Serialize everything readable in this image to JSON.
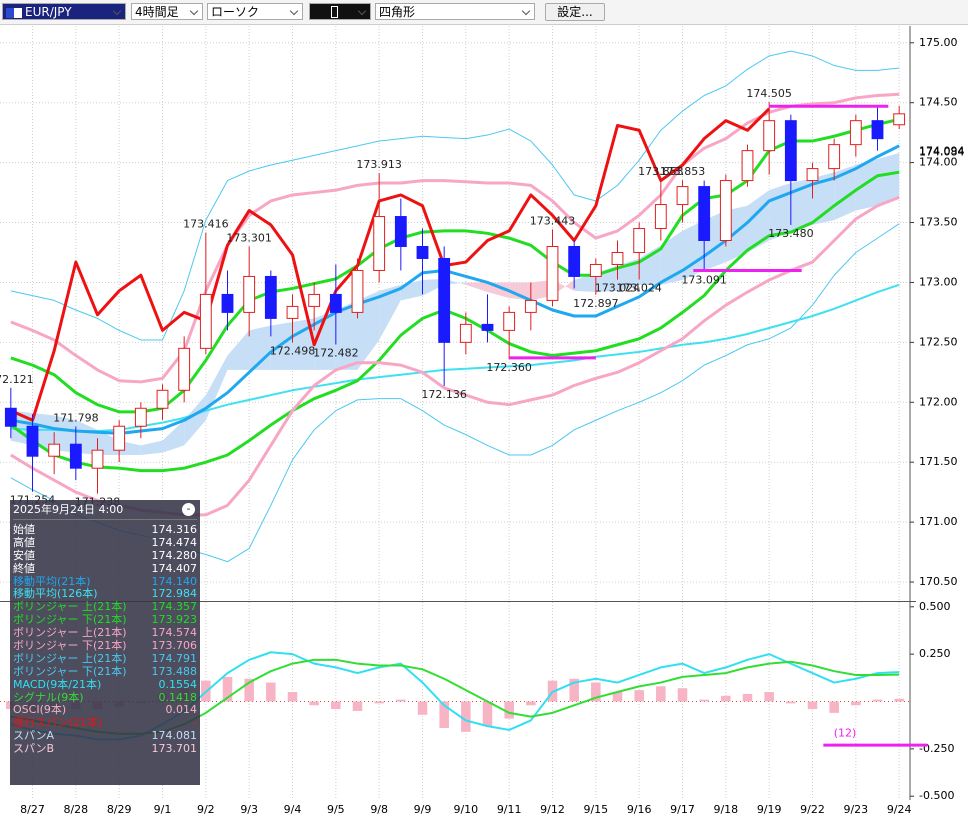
{
  "toolbar": {
    "symbol": "EUR/JPY",
    "timeframe": "4時間足",
    "chart_type": "ローソク",
    "drawing_tool": "四角形",
    "settings_button": "設定..."
  },
  "info_panel": {
    "title": "2025年9月24日 4:00",
    "ohlc": [
      {
        "label": "始値",
        "value": "174.316"
      },
      {
        "label": "高値",
        "value": "174.474"
      },
      {
        "label": "安値",
        "value": "174.280"
      },
      {
        "label": "終値",
        "value": "174.407"
      }
    ],
    "series_values": [
      "174.140",
      "172.984",
      "174.357",
      "173.923",
      "174.574",
      "173.706",
      "174.791",
      "173.488",
      "0.1554",
      "0.1418",
      "0.014",
      "-",
      "174.081",
      "173.701"
    ]
  },
  "chart_data": {
    "type": "candlestick",
    "categories": [
      null,
      "8/27",
      null,
      "8/28",
      null,
      "8/29",
      null,
      "9/1",
      null,
      "9/2",
      null,
      "9/3",
      null,
      "9/4",
      null,
      "9/5",
      null,
      "9/8",
      null,
      "9/9",
      null,
      "9/10",
      null,
      "9/11",
      null,
      "9/12",
      null,
      "9/15",
      null,
      "9/16",
      null,
      "9/17",
      null,
      "9/18",
      null,
      "9/19",
      null,
      "9/22",
      null,
      "9/23",
      null,
      "9/24"
    ],
    "open": [
      171.95,
      171.8,
      171.55,
      171.65,
      171.45,
      171.6,
      171.8,
      171.95,
      172.1,
      172.45,
      172.9,
      172.75,
      173.05,
      172.7,
      172.8,
      172.9,
      172.75,
      173.1,
      173.55,
      173.3,
      173.2,
      172.5,
      172.65,
      172.6,
      172.75,
      172.85,
      173.3,
      173.05,
      173.15,
      173.25,
      173.45,
      173.65,
      173.8,
      173.35,
      173.85,
      174.1,
      174.35,
      173.85,
      173.95,
      174.15,
      174.35,
      174.316
    ],
    "high": [
      172.121,
      171.9,
      171.75,
      171.798,
      171.7,
      171.85,
      172.0,
      172.15,
      172.55,
      173.416,
      173.1,
      173.301,
      173.1,
      172.9,
      173.0,
      173.15,
      173.2,
      173.913,
      173.7,
      173.45,
      173.3,
      172.75,
      172.9,
      172.8,
      173.0,
      173.443,
      173.35,
      173.2,
      173.35,
      173.5,
      173.853,
      173.853,
      173.85,
      173.9,
      174.15,
      174.505,
      174.4,
      174.0,
      174.2,
      174.4,
      174.47,
      174.474
    ],
    "low": [
      171.7,
      171.254,
      171.4,
      171.35,
      171.238,
      171.5,
      171.7,
      171.85,
      172.0,
      172.4,
      172.6,
      172.55,
      172.55,
      172.498,
      172.6,
      172.482,
      172.7,
      173.0,
      173.1,
      172.9,
      172.136,
      172.4,
      172.5,
      172.36,
      172.6,
      172.8,
      172.95,
      172.897,
      173.024,
      173.024,
      173.35,
      173.5,
      173.091,
      173.3,
      173.8,
      173.9,
      173.48,
      173.7,
      173.85,
      174.05,
      174.1,
      174.28
    ],
    "close": [
      171.8,
      171.55,
      171.65,
      171.45,
      171.6,
      171.8,
      171.95,
      172.1,
      172.45,
      172.9,
      172.75,
      173.05,
      172.7,
      172.8,
      172.9,
      172.75,
      173.1,
      173.55,
      173.3,
      173.2,
      172.5,
      172.65,
      172.6,
      172.75,
      172.85,
      173.3,
      173.05,
      173.15,
      173.25,
      173.45,
      173.65,
      173.8,
      173.35,
      173.85,
      174.1,
      174.35,
      173.85,
      173.95,
      174.15,
      174.35,
      174.2,
      174.407
    ],
    "up_color": "#e02020",
    "down_color": "#1a1aff",
    "series": [
      {
        "name": "移動平均(21本)",
        "color": "#1fa8f0",
        "mark": "line",
        "line_width": 3,
        "values": [
          171.85,
          171.82,
          171.78,
          171.76,
          171.75,
          171.74,
          171.76,
          171.78,
          171.85,
          171.95,
          172.08,
          172.25,
          172.42,
          172.55,
          172.65,
          172.75,
          172.82,
          172.88,
          172.95,
          173.08,
          173.1,
          173.05,
          173.0,
          172.93,
          172.85,
          172.77,
          172.72,
          172.72,
          172.8,
          172.88,
          173.0,
          173.1,
          173.22,
          173.35,
          173.5,
          173.68,
          173.75,
          173.82,
          173.87,
          173.95,
          174.05,
          174.14
        ]
      },
      {
        "name": "移動平均(126本)",
        "color": "#3fe0f0",
        "mark": "line",
        "line_width": 2,
        "values": [
          171.78,
          171.77,
          171.77,
          171.76,
          171.76,
          171.77,
          171.8,
          171.83,
          171.87,
          171.93,
          171.98,
          172.02,
          172.06,
          172.1,
          172.13,
          172.16,
          172.19,
          172.21,
          172.23,
          172.25,
          172.27,
          172.28,
          172.29,
          172.3,
          172.31,
          172.33,
          172.35,
          172.38,
          172.4,
          172.42,
          172.45,
          172.48,
          172.5,
          172.53,
          172.57,
          172.62,
          172.67,
          172.72,
          172.78,
          172.85,
          172.92,
          172.98
        ]
      },
      {
        "name": "ボリンジャー 上(21本)",
        "color": "#22dd22",
        "mark": "line",
        "line_width": 3,
        "values": [
          172.37,
          172.31,
          172.23,
          172.08,
          171.98,
          171.92,
          171.92,
          171.95,
          172.1,
          172.35,
          172.64,
          172.85,
          172.92,
          172.95,
          172.99,
          173.03,
          173.14,
          173.28,
          173.37,
          173.42,
          173.43,
          173.43,
          173.41,
          173.37,
          173.31,
          173.17,
          173.06,
          173.06,
          173.12,
          173.17,
          173.28,
          173.56,
          173.7,
          173.73,
          173.85,
          174.1,
          174.18,
          174.18,
          174.22,
          174.27,
          174.32,
          174.36
        ]
      },
      {
        "name": "ボリンジャー 下(21本)",
        "color": "#22dd22",
        "mark": "line",
        "line_width": 3,
        "values": [
          171.81,
          171.68,
          171.56,
          171.5,
          171.46,
          171.45,
          171.43,
          171.43,
          171.45,
          171.5,
          171.56,
          171.68,
          171.81,
          171.93,
          172.03,
          172.1,
          172.18,
          172.35,
          172.56,
          172.7,
          172.77,
          172.7,
          172.6,
          172.49,
          172.42,
          172.39,
          172.41,
          172.43,
          172.48,
          172.53,
          172.62,
          172.75,
          172.89,
          173.1,
          173.27,
          173.39,
          173.42,
          173.5,
          173.64,
          173.77,
          173.89,
          173.92
        ]
      },
      {
        "name": "ボリンジャー 上(21本)",
        "color": "#f7a6c6",
        "mark": "line",
        "line_width": 3,
        "values": [
          172.67,
          172.6,
          172.52,
          172.39,
          172.27,
          172.18,
          172.17,
          172.2,
          172.43,
          172.93,
          173.31,
          173.56,
          173.68,
          173.73,
          173.75,
          173.77,
          173.81,
          173.83,
          173.83,
          173.85,
          173.85,
          173.84,
          173.83,
          173.83,
          173.81,
          173.68,
          173.5,
          173.37,
          173.43,
          173.56,
          173.73,
          173.98,
          174.12,
          174.2,
          174.33,
          174.42,
          174.47,
          174.49,
          174.5,
          174.54,
          174.56,
          174.57
        ]
      },
      {
        "name": "ボリンジャー 下(21本)",
        "color": "#f7a6c6",
        "mark": "line",
        "line_width": 3,
        "values": [
          171.56,
          171.45,
          171.35,
          171.25,
          171.18,
          171.14,
          171.1,
          171.08,
          171.06,
          171.06,
          171.14,
          171.35,
          171.64,
          171.93,
          172.14,
          172.27,
          172.33,
          172.33,
          172.31,
          172.25,
          172.12,
          172.06,
          172.0,
          171.98,
          172.02,
          172.06,
          172.14,
          172.2,
          172.25,
          172.33,
          172.43,
          172.53,
          172.68,
          172.81,
          172.92,
          173.02,
          173.1,
          173.17,
          173.35,
          173.53,
          173.64,
          173.71
        ]
      },
      {
        "name": "ボリンジャー 上(21本)",
        "color": "#4cc8f0",
        "mark": "line",
        "line_width": 1,
        "values": [
          172.93,
          172.89,
          172.85,
          172.77,
          172.7,
          172.6,
          172.52,
          172.52,
          172.93,
          173.52,
          173.85,
          173.93,
          173.98,
          174.02,
          174.06,
          174.1,
          174.14,
          174.18,
          174.2,
          174.22,
          174.21,
          174.2,
          174.23,
          174.28,
          174.18,
          173.98,
          173.73,
          173.68,
          173.81,
          174.02,
          174.27,
          174.43,
          174.56,
          174.64,
          174.78,
          174.89,
          174.93,
          174.89,
          174.81,
          174.77,
          174.77,
          174.79
        ]
      },
      {
        "name": "ボリンジャー 下(21本)",
        "color": "#4cc8f0",
        "mark": "line",
        "line_width": 1,
        "values": [
          171.37,
          171.27,
          171.18,
          171.06,
          171.0,
          170.93,
          170.89,
          170.85,
          170.78,
          170.73,
          170.67,
          170.78,
          171.14,
          171.52,
          171.77,
          171.93,
          172.02,
          172.03,
          172.03,
          171.93,
          171.81,
          171.73,
          171.64,
          171.56,
          171.56,
          171.64,
          171.77,
          171.85,
          171.93,
          172.0,
          172.08,
          172.18,
          172.31,
          172.39,
          172.48,
          172.53,
          172.62,
          172.81,
          173.06,
          173.25,
          173.37,
          173.49
        ]
      },
      {
        "name": "MACD(9本/21本)",
        "color": "#30e0f0",
        "mark": "line",
        "line_width": 2,
        "axis": "y2",
        "values": [
          -0.12,
          -0.15,
          -0.17,
          -0.18,
          -0.2,
          -0.2,
          -0.18,
          -0.12,
          -0.05,
          0.05,
          0.15,
          0.22,
          0.26,
          0.25,
          0.2,
          0.18,
          0.15,
          0.18,
          0.2,
          0.1,
          -0.02,
          -0.1,
          -0.13,
          -0.15,
          -0.1,
          0.05,
          0.1,
          0.12,
          0.1,
          0.14,
          0.18,
          0.2,
          0.15,
          0.18,
          0.22,
          0.25,
          0.2,
          0.15,
          0.1,
          0.12,
          0.15,
          0.1554
        ]
      },
      {
        "name": "シグナル(9本)",
        "color": "#33dd33",
        "mark": "line",
        "line_width": 2,
        "axis": "y2",
        "values": [
          -0.08,
          -0.1,
          -0.12,
          -0.14,
          -0.16,
          -0.17,
          -0.17,
          -0.16,
          -0.12,
          -0.06,
          0.02,
          0.1,
          0.16,
          0.2,
          0.22,
          0.22,
          0.2,
          0.19,
          0.19,
          0.17,
          0.12,
          0.06,
          0.0,
          -0.06,
          -0.08,
          -0.06,
          -0.02,
          0.02,
          0.05,
          0.08,
          0.1,
          0.13,
          0.14,
          0.15,
          0.18,
          0.2,
          0.21,
          0.19,
          0.16,
          0.14,
          0.14,
          0.1418
        ]
      },
      {
        "name": "OSCI(9本)",
        "color": "#f6b4c4",
        "mark": "bar",
        "axis": "y2",
        "values": [
          -0.04,
          -0.05,
          -0.05,
          -0.04,
          -0.04,
          -0.03,
          -0.01,
          0.04,
          0.07,
          0.11,
          0.13,
          0.12,
          0.1,
          0.05,
          -0.02,
          -0.04,
          -0.05,
          -0.01,
          0.01,
          -0.07,
          -0.14,
          -0.16,
          -0.13,
          -0.09,
          -0.02,
          0.11,
          0.12,
          0.1,
          0.05,
          0.06,
          0.08,
          0.07,
          0.01,
          0.03,
          0.04,
          0.05,
          -0.01,
          -0.04,
          -0.06,
          -0.02,
          0.01,
          0.014
        ]
      },
      {
        "name": "遅行スパン(21本)",
        "color": "#ee1111",
        "mark": "line",
        "line_width": 3,
        "values": [
          171.93,
          171.85,
          172.43,
          173.17,
          172.73,
          172.93,
          173.06,
          172.6,
          172.75,
          172.68,
          173.31,
          173.6,
          173.48,
          173.23,
          172.48,
          172.93,
          173.14,
          173.68,
          173.73,
          173.64,
          173.14,
          173.17,
          173.35,
          173.43,
          173.73,
          173.56,
          173.35,
          173.64,
          174.31,
          174.27,
          173.85,
          173.98,
          174.2,
          174.35,
          174.27,
          174.45,
          null,
          null,
          null,
          null,
          null,
          null
        ]
      },
      {
        "name": "スパンA",
        "color": "#c6def6",
        "mark": "cloud",
        "values": [
          171.93,
          171.91,
          171.89,
          171.85,
          171.77,
          171.68,
          171.64,
          171.68,
          171.85,
          172.06,
          172.39,
          172.6,
          172.64,
          172.67,
          172.7,
          172.77,
          172.85,
          172.93,
          172.98,
          173.02,
          173.03,
          172.98,
          172.92,
          172.87,
          172.85,
          172.89,
          173.02,
          173.08,
          173.14,
          173.2,
          173.31,
          173.43,
          173.52,
          173.6,
          173.64,
          173.77,
          173.83,
          173.87,
          173.92,
          173.98,
          174.03,
          174.08
        ]
      },
      {
        "name": "スパンB",
        "color": "#f7cad8",
        "mark": "cloud",
        "values": [
          171.68,
          171.64,
          171.6,
          171.58,
          171.56,
          171.56,
          171.56,
          171.58,
          171.64,
          171.85,
          172.27,
          172.27,
          172.27,
          172.27,
          172.27,
          172.27,
          172.27,
          172.52,
          172.85,
          172.89,
          172.98,
          173.0,
          173.0,
          173.0,
          173.0,
          173.02,
          172.93,
          172.92,
          172.93,
          172.98,
          172.98,
          173.02,
          173.1,
          173.17,
          173.25,
          173.35,
          173.42,
          173.48,
          173.52,
          173.6,
          173.64,
          173.7
        ]
      }
    ],
    "annotations": [
      {
        "label": "172.121",
        "value": 172.121,
        "x": 0
      },
      {
        "label": "171.254",
        "value": 171.254,
        "x": 1
      },
      {
        "label": "171.798",
        "value": 171.798,
        "x": 3
      },
      {
        "label": "171.238",
        "value": 171.238,
        "x": 4
      },
      {
        "label": "173.416",
        "value": 173.416,
        "x": 9
      },
      {
        "label": "173.301",
        "value": 173.301,
        "x": 11
      },
      {
        "label": "172.498",
        "value": 172.498,
        "x": 13
      },
      {
        "label": "172.482",
        "value": 172.482,
        "x": 15
      },
      {
        "label": "173.913",
        "value": 173.913,
        "x": 17
      },
      {
        "label": "172.136",
        "value": 172.136,
        "x": 20
      },
      {
        "label": "172.360",
        "value": 172.36,
        "x": 23
      },
      {
        "label": "173.443",
        "value": 173.443,
        "x": 25
      },
      {
        "label": "172.897",
        "value": 172.897,
        "x": 27
      },
      {
        "label": "173.024",
        "value": 173.024,
        "x": 28
      },
      {
        "label": "173.024",
        "value": 173.024,
        "x": 29
      },
      {
        "label": "173.853",
        "value": 173.853,
        "x": 30
      },
      {
        "label": "173.853",
        "value": 173.853,
        "x": 31
      },
      {
        "label": "173.091",
        "value": 173.091,
        "x": 32
      },
      {
        "label": "174.505",
        "value": 174.505,
        "x": 35
      },
      {
        "label": "173.480",
        "value": 173.48,
        "x": 36
      }
    ],
    "drawings_color": "#ee22ee",
    "drawings": [
      {
        "from": 35,
        "to": 40.5,
        "value": 174.47
      },
      {
        "from": 31.5,
        "to": 36.5,
        "value": 173.1
      },
      {
        "from": 23,
        "to": 27,
        "value": 172.37
      },
      {
        "from": 37.5,
        "to": 42.3,
        "value": -0.23,
        "axis": "y2"
      }
    ],
    "y2_annotation": {
      "label": "(12)",
      "x": 38.5,
      "value": -0.17
    },
    "price_labels": [
      {
        "value": 174.094,
        "label": "174.094"
      },
      {
        "value": 174.084,
        "label": "174.084"
      }
    ],
    "ylim": [
      170.35,
      175.14
    ],
    "yticks": [
      {
        "value": 175,
        "label": "175.00"
      },
      {
        "value": 174.5,
        "label": "174.50"
      },
      {
        "value": 174,
        "label": "174.00"
      },
      {
        "value": 173.5,
        "label": "173.50"
      },
      {
        "value": 173,
        "label": "173.00"
      },
      {
        "value": 172.5,
        "label": "172.50"
      },
      {
        "value": 172,
        "label": "172.00"
      },
      {
        "value": 171.5,
        "label": "171.50"
      },
      {
        "value": 171,
        "label": "171.00"
      },
      {
        "value": 170.5,
        "label": "170.50"
      }
    ],
    "y2lim": [
      -0.52,
      0.52
    ],
    "y2ticks": [
      {
        "value": 0.5,
        "label": "0.500"
      },
      {
        "value": 0.25,
        "label": "0.250"
      },
      {
        "value": -0.25,
        "label": "-0.250"
      },
      {
        "value": -0.5,
        "label": "-0.500"
      }
    ],
    "grid": true
  }
}
